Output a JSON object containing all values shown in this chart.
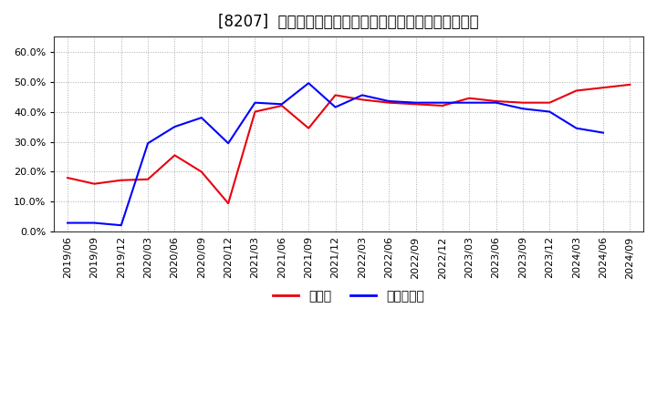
{
  "title": "[8207]  現預金、有利子負債の総資産に対する比率の推移",
  "x_labels": [
    "2019/06",
    "2019/09",
    "2019/12",
    "2020/03",
    "2020/06",
    "2020/09",
    "2020/12",
    "2021/03",
    "2021/06",
    "2021/09",
    "2021/12",
    "2022/03",
    "2022/06",
    "2022/09",
    "2022/12",
    "2023/03",
    "2023/06",
    "2023/09",
    "2023/12",
    "2024/03",
    "2024/06",
    "2024/09"
  ],
  "cash": [
    0.18,
    0.16,
    0.172,
    0.175,
    0.255,
    0.2,
    0.095,
    0.4,
    0.42,
    0.345,
    0.455,
    0.44,
    0.43,
    0.425,
    0.42,
    0.445,
    0.435,
    0.43,
    0.43,
    0.47,
    0.48,
    0.49
  ],
  "debt": [
    0.03,
    0.03,
    0.022,
    0.295,
    0.35,
    0.38,
    0.295,
    0.43,
    0.425,
    0.495,
    0.415,
    0.455,
    0.435,
    0.43,
    0.43,
    0.43,
    0.43,
    0.41,
    0.4,
    0.345,
    0.33,
    null
  ],
  "cash_color": "#e8000d",
  "debt_color": "#0000ff",
  "ylim": [
    0.0,
    0.65
  ],
  "yticks": [
    0.0,
    0.1,
    0.2,
    0.3,
    0.4,
    0.5,
    0.6
  ],
  "background_color": "#ffffff",
  "plot_bg_color": "#ffffff",
  "grid_color": "#aaaaaa",
  "legend_cash": "現預金",
  "legend_debt": "有利子負債",
  "title_fontsize": 12,
  "tick_fontsize": 8,
  "legend_fontsize": 10
}
